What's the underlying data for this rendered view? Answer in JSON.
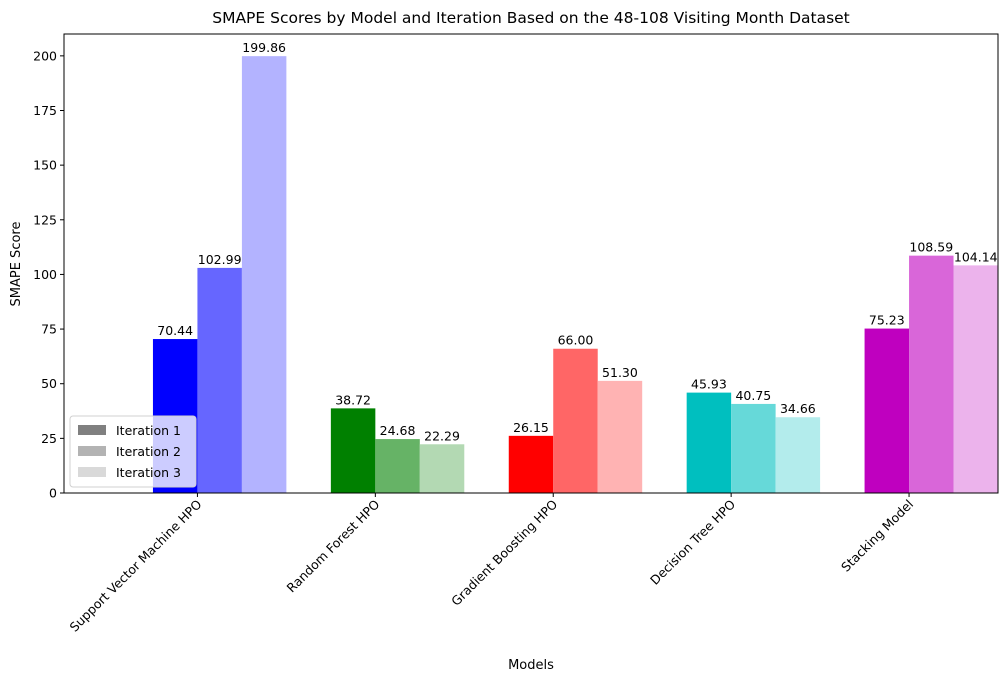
{
  "chart_data": {
    "type": "bar",
    "title": "SMAPE Scores by Model and Iteration Based on the 48-108 Visiting Month Dataset",
    "xlabel": "Models",
    "ylabel": "SMAPE Score",
    "ylim": [
      0,
      210
    ],
    "yticks": [
      0,
      25,
      50,
      75,
      100,
      125,
      150,
      175,
      200
    ],
    "categories": [
      "Support Vector Machine HPO",
      "Random Forest HPO",
      "Gradient Boosting HPO",
      "Decision Tree HPO",
      "Stacking Model"
    ],
    "series": [
      {
        "name": "Iteration 1",
        "values": [
          70.44,
          38.72,
          26.15,
          45.93,
          75.23
        ],
        "value_labels": [
          "70.44",
          "38.72",
          "26.15",
          "45.93",
          "75.23"
        ],
        "alpha": 1.0
      },
      {
        "name": "Iteration 2",
        "values": [
          102.99,
          24.68,
          66.0,
          40.75,
          108.59
        ],
        "value_labels": [
          "102.99",
          "24.68",
          "66.00",
          "40.75",
          "108.59"
        ],
        "alpha": 0.6
      },
      {
        "name": "Iteration 3",
        "values": [
          199.86,
          22.29,
          51.3,
          34.66,
          104.14
        ],
        "value_labels": [
          "199.86",
          "22.29",
          "51.30",
          "34.66",
          "104.14"
        ],
        "alpha": 0.3
      }
    ],
    "category_colors": [
      "#0000ff",
      "#008000",
      "#ff0000",
      "#00bfbf",
      "#bf00bf"
    ],
    "legend_color": "#808080",
    "legend_position": "lower-left",
    "grid": false
  }
}
